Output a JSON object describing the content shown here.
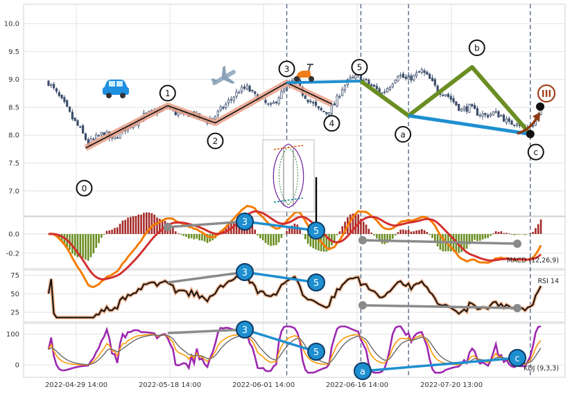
{
  "chart_data": [
    {
      "type": "candlestick",
      "panel": "price",
      "x_ticks": [
        "2022-04-29 14:00",
        "2022-05-18 14:00",
        "2022-06-01 14:00",
        "2022-06-16 14:00",
        "2022-07-20 13:00"
      ],
      "y_ticks": [
        "7.0",
        "7.5",
        "8.0",
        "8.5",
        "9.0",
        "9.5",
        "10.0"
      ],
      "ylim": [
        6.55,
        10.35
      ],
      "price_points": [
        [
          0,
          8.95
        ],
        [
          3,
          8.75
        ],
        [
          6,
          8.55
        ],
        [
          9,
          8.3
        ],
        [
          12,
          8.1
        ],
        [
          15,
          7.85
        ],
        [
          18,
          7.95
        ],
        [
          21,
          8.05
        ],
        [
          24,
          7.9
        ],
        [
          27,
          8.05
        ],
        [
          30,
          8.15
        ],
        [
          33,
          8.25
        ],
        [
          36,
          8.35
        ],
        [
          39,
          8.4
        ],
        [
          42,
          8.45
        ],
        [
          45,
          8.5
        ],
        [
          48,
          8.4
        ],
        [
          51,
          8.35
        ],
        [
          54,
          8.4
        ],
        [
          57,
          8.3
        ],
        [
          60,
          8.25
        ],
        [
          63,
          8.35
        ],
        [
          66,
          8.5
        ],
        [
          69,
          8.65
        ],
        [
          72,
          8.8
        ],
        [
          75,
          8.85
        ],
        [
          78,
          8.7
        ],
        [
          81,
          8.6
        ],
        [
          84,
          8.5
        ],
        [
          87,
          8.7
        ],
        [
          90,
          8.85
        ],
        [
          93,
          9.0
        ],
        [
          96,
          8.75
        ],
        [
          99,
          8.6
        ],
        [
          102,
          8.45
        ],
        [
          105,
          8.4
        ],
        [
          108,
          8.55
        ],
        [
          111,
          8.85
        ],
        [
          114,
          9.0
        ],
        [
          117,
          9.05
        ],
        [
          120,
          8.95
        ],
        [
          123,
          8.85
        ],
        [
          126,
          8.75
        ],
        [
          129,
          8.9
        ],
        [
          132,
          9.1
        ],
        [
          135,
          9.0
        ],
        [
          138,
          9.05
        ],
        [
          141,
          9.15
        ],
        [
          144,
          9.0
        ],
        [
          147,
          8.8
        ],
        [
          150,
          8.75
        ],
        [
          153,
          8.6
        ],
        [
          156,
          8.45
        ],
        [
          159,
          8.5
        ],
        [
          162,
          8.4
        ],
        [
          165,
          8.35
        ],
        [
          168,
          8.4
        ],
        [
          171,
          8.35
        ],
        [
          174,
          8.2
        ],
        [
          177,
          8.25
        ],
        [
          180,
          8.1
        ],
        [
          183,
          8.2
        ],
        [
          186,
          8.45
        ]
      ],
      "wave_points": [
        {
          "label": "0",
          "x": 14,
          "y": 7.77
        },
        {
          "label": "1",
          "x": 45,
          "y": 8.53
        },
        {
          "label": "2",
          "x": 63,
          "y": 8.22
        },
        {
          "label": "3",
          "x": 90,
          "y": 8.94
        },
        {
          "label": "4",
          "x": 107,
          "y": 8.56
        },
        {
          "label": "5",
          "x": 118,
          "y": 8.97
        },
        {
          "label": "a",
          "x": 136,
          "y": 8.35
        },
        {
          "label": "b",
          "x": 160,
          "y": 9.22
        },
        {
          "label": "c",
          "x": 182,
          "y": 8.02
        }
      ],
      "wave_labels": [
        "0",
        "1",
        "2",
        "3",
        "4",
        "5",
        "a",
        "b",
        "c"
      ],
      "degree_label": "III"
    },
    {
      "type": "line",
      "panel": "macd",
      "label": "MACD (12,26,9)",
      "y_ticks": [
        "0.0",
        "-0.2"
      ],
      "ylim": [
        -0.36,
        0.18
      ]
    },
    {
      "type": "line",
      "panel": "rsi",
      "label": "RSI 14",
      "y_ticks": [
        "75",
        "50",
        "25"
      ],
      "ylim": [
        12,
        82
      ]
    },
    {
      "type": "line",
      "panel": "kdj",
      "label": "KDJ (9,3,3)",
      "y_ticks": [
        "100",
        "0"
      ],
      "ylim": [
        -40,
        135
      ]
    }
  ],
  "badges": {
    "b3": "3",
    "b5": "5",
    "ba": "a",
    "bc": "c"
  },
  "colors": {
    "candle": "#3c4d6b",
    "impulse": "#e8a088",
    "impulse_line": "#111111",
    "correction": "#6b8e23",
    "trend": "#1e8fd0",
    "divergence": "#8a8a8a",
    "macd_line": "#f57c00",
    "signal_line": "#d32f2f",
    "hist_up": "#a52a2a",
    "hist_down": "#6b8e23",
    "rsi": "#111111",
    "k_line": "#9c27b0",
    "d_line": "#ff9800",
    "badge": "#1e8fd0"
  },
  "icons": [
    "car-icon",
    "airplane-icon",
    "scooter-icon",
    "wave-pattern-inset"
  ]
}
